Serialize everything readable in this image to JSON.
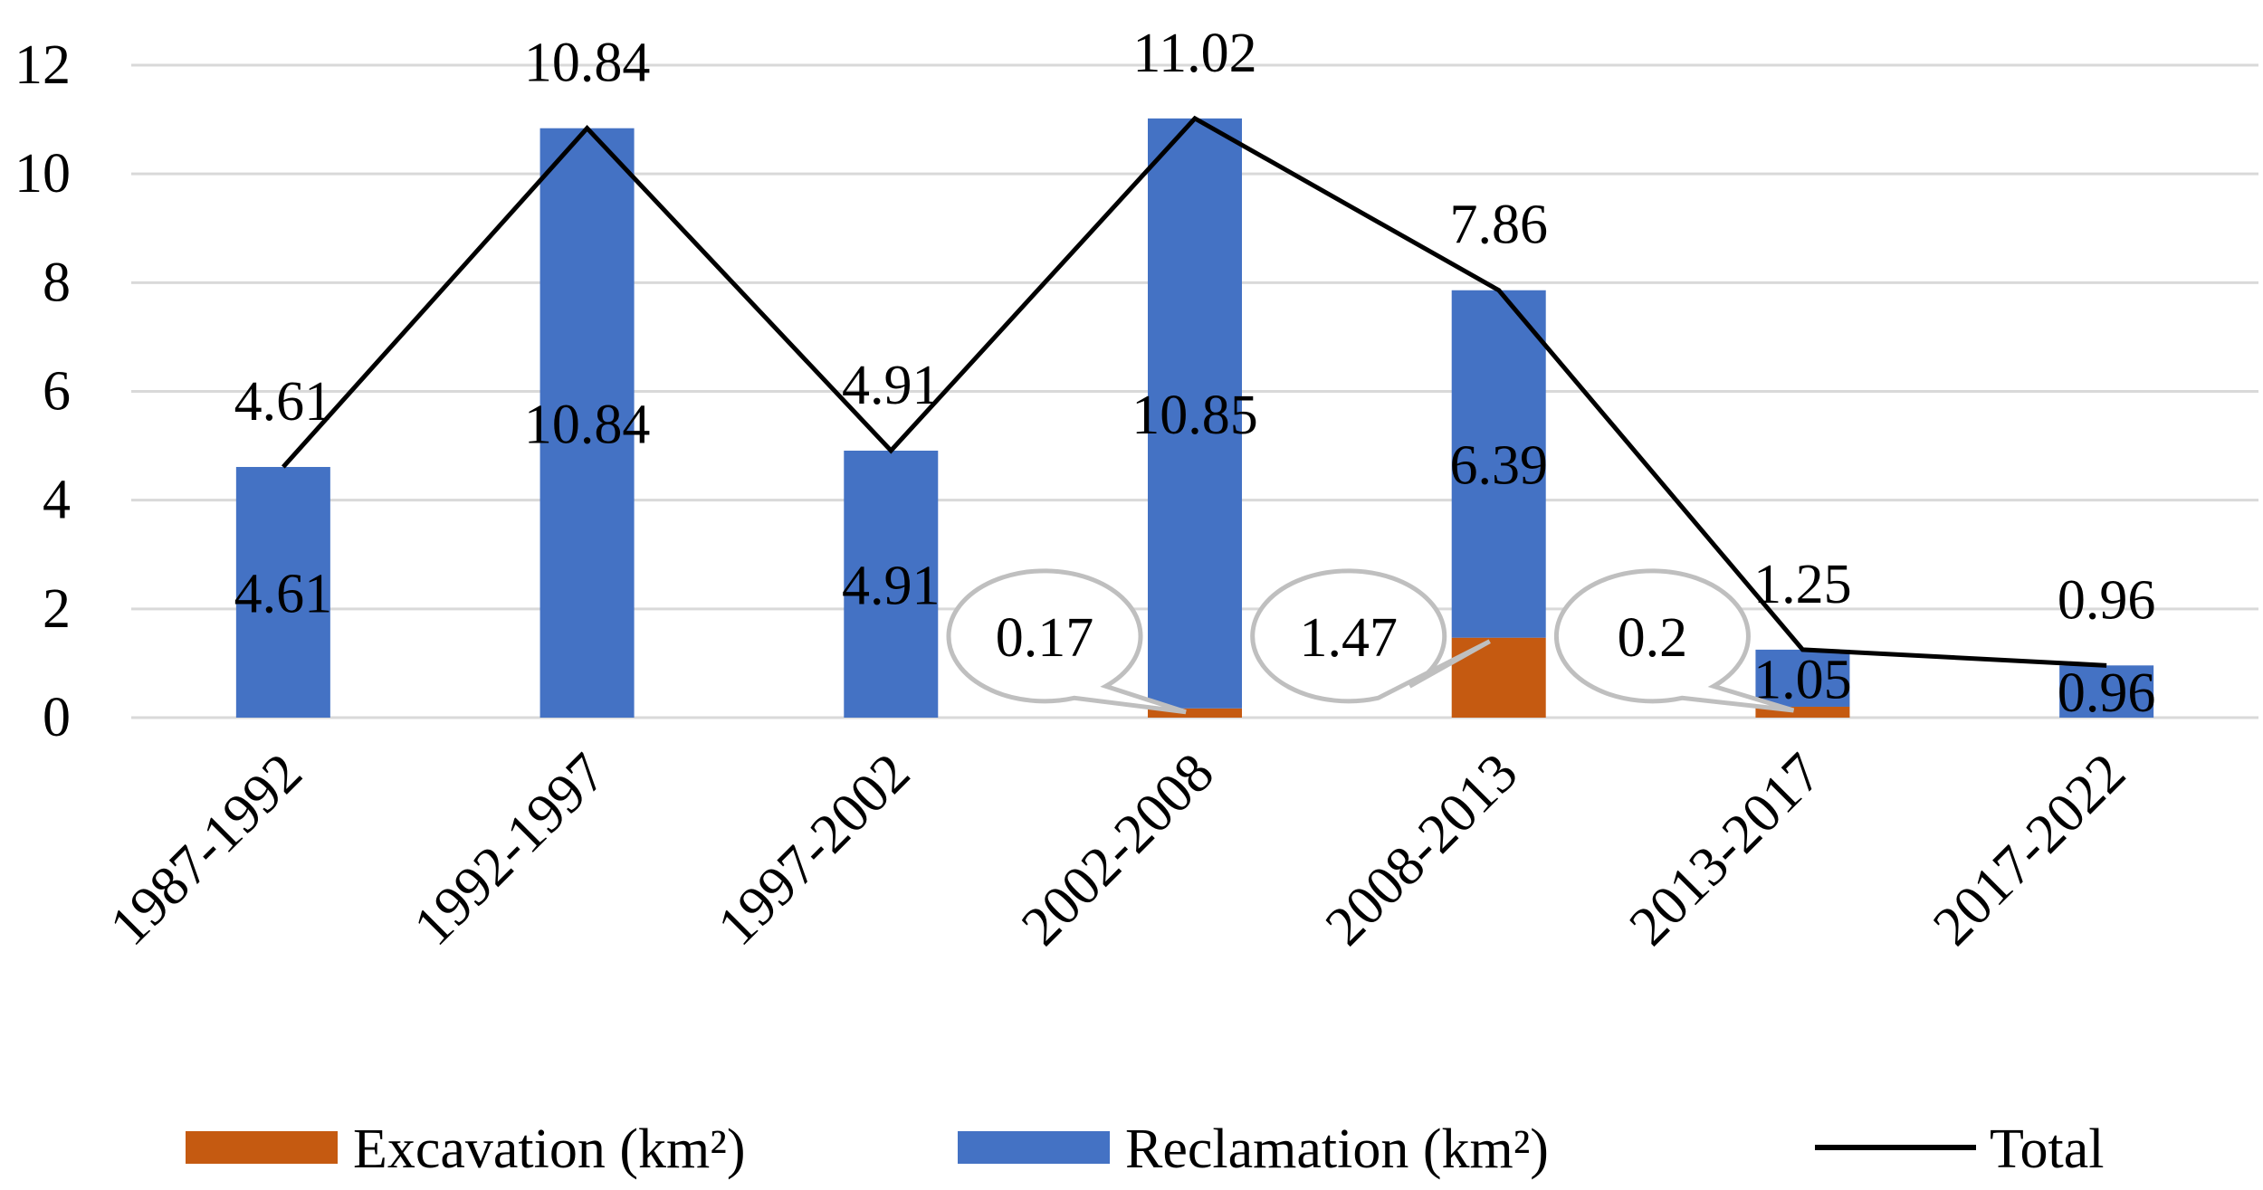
{
  "chart_data": {
    "type": "bar",
    "stacked": true,
    "title": "",
    "xlabel": "",
    "ylabel": "",
    "ylim": [
      0,
      12
    ],
    "yticks": [
      0,
      2,
      4,
      6,
      8,
      10,
      12
    ],
    "ytick_labels": [
      "0",
      "2",
      "4",
      "6",
      "8",
      "10",
      "12"
    ],
    "grid": true,
    "legend_position": "bottom",
    "categories": [
      "1987-1992",
      "1992-1997",
      "1997-2002",
      "2002-2008",
      "2008-2013",
      "2013-2017",
      "2017-2022"
    ],
    "series": [
      {
        "name": "Excavation (km²)",
        "kind": "bar",
        "color": "#C55A11",
        "values": [
          0,
          0,
          0,
          0.17,
          1.47,
          0.2,
          0
        ],
        "labels": [
          "",
          "",
          "",
          "0.17",
          "1.47",
          "0.2",
          ""
        ]
      },
      {
        "name": "Reclamation (km²)",
        "kind": "bar",
        "color": "#4472C4",
        "values": [
          4.61,
          10.84,
          4.91,
          10.85,
          6.39,
          1.05,
          0.96
        ],
        "labels": [
          "4.61",
          "10.84",
          "4.91",
          "10.85",
          "6.39",
          "1.05",
          "0.96"
        ]
      },
      {
        "name": "Total",
        "kind": "line",
        "color": "#000000",
        "values": [
          4.61,
          10.84,
          4.91,
          11.02,
          7.86,
          1.25,
          0.96
        ],
        "labels": [
          "4.61",
          "10.84",
          "4.91",
          "11.02",
          "7.86",
          "1.25",
          "0.96"
        ]
      }
    ]
  }
}
